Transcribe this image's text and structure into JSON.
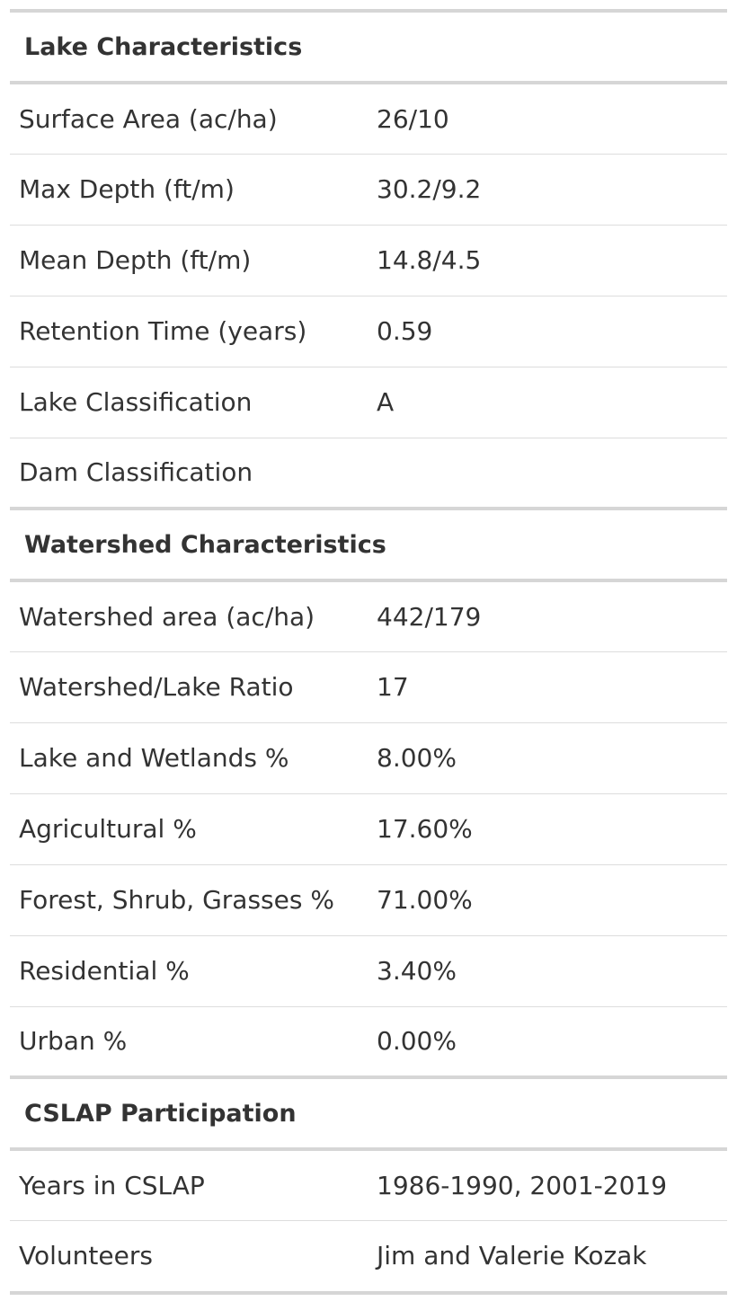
{
  "sections": [
    {
      "title": "Lake Characteristics",
      "rows": [
        {
          "label": "Surface Area (ac/ha)",
          "value": "26/10"
        },
        {
          "label": "Max Depth (ft/m)",
          "value": "30.2/9.2"
        },
        {
          "label": "Mean Depth (ft/m)",
          "value": "14.8/4.5"
        },
        {
          "label": "Retention Time (years)",
          "value": "0.59"
        },
        {
          "label": "Lake Classification",
          "value": "A"
        },
        {
          "label": "Dam Classification",
          "value": ""
        }
      ]
    },
    {
      "title": "Watershed Characteristics",
      "rows": [
        {
          "label": "Watershed area (ac/ha)",
          "value": "442/179"
        },
        {
          "label": "Watershed/Lake Ratio",
          "value": "17"
        },
        {
          "label": "Lake and Wetlands %",
          "value": "8.00%"
        },
        {
          "label": "Agricultural %",
          "value": "17.60%"
        },
        {
          "label": "Forest, Shrub, Grasses %",
          "value": "71.00%"
        },
        {
          "label": "Residential %",
          "value": "3.40%"
        },
        {
          "label": "Urban %",
          "value": "0.00%"
        }
      ]
    },
    {
      "title": "CSLAP Participation",
      "rows": [
        {
          "label": "Years in CSLAP",
          "value": "1986-1990, 2001-2019"
        },
        {
          "label": "Volunteers",
          "value": "Jim and Valerie Kozak"
        }
      ]
    }
  ],
  "colors": {
    "text": "#333333",
    "heavy_rule": "#d6d6d6",
    "light_rule": "#dddddd",
    "background": "#ffffff"
  }
}
